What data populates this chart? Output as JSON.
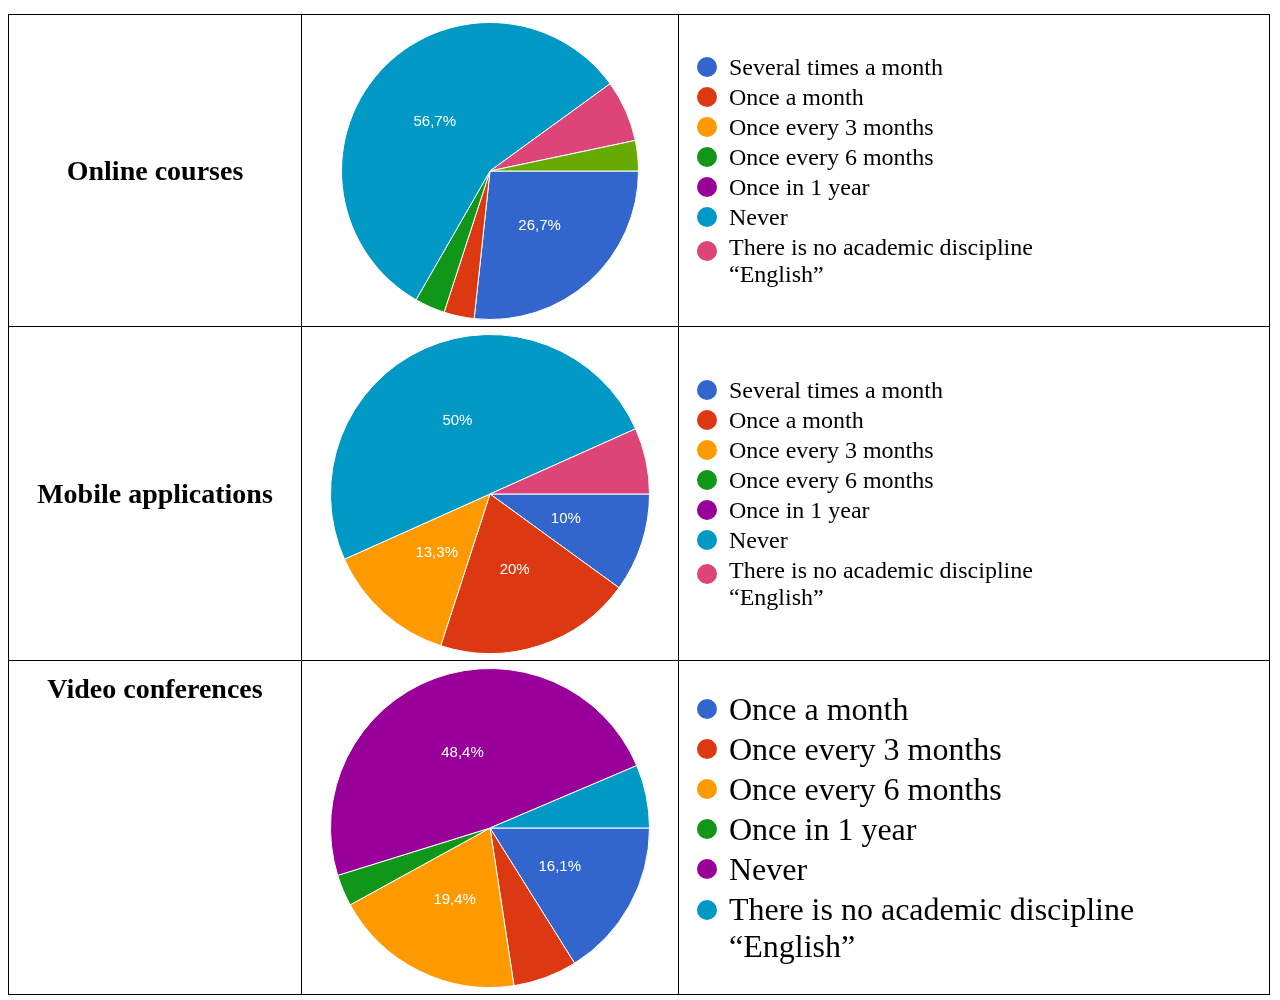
{
  "chart_data": [
    {
      "type": "pie",
      "title": "Online courses",
      "legend": "right",
      "categories": [
        "Several times a month",
        "Once a month",
        "Once every 3 months",
        "Once every 6 months",
        "Once in 1 year",
        "Never",
        "There is no academic discipline “English”",
        null
      ],
      "values": [
        26.7,
        3.3,
        0,
        3.3,
        0,
        56.7,
        6.7,
        3.3
      ],
      "colors": [
        "#3366cc",
        "#dc3912",
        "#ff9900",
        "#109618",
        "#990099",
        "#0099c6",
        "#dd4477",
        "#66aa00"
      ],
      "value_labels": [
        "26,7%",
        null,
        null,
        null,
        null,
        "56,7%",
        null,
        null
      ]
    },
    {
      "type": "pie",
      "title": "Mobile applications",
      "legend": "right",
      "categories": [
        "Several times a month",
        "Once a month",
        "Once every 3 months",
        "Once every 6 months",
        "Once in 1 year",
        "Never",
        "There is no academic discipline “English”"
      ],
      "values": [
        10,
        20,
        13.3,
        0,
        0,
        50,
        6.7
      ],
      "colors": [
        "#3366cc",
        "#dc3912",
        "#ff9900",
        "#109618",
        "#990099",
        "#0099c6",
        "#dd4477"
      ],
      "value_labels": [
        "10%",
        "20%",
        "13,3%",
        null,
        null,
        "50%",
        null
      ]
    },
    {
      "type": "pie",
      "title": "Video conferences",
      "legend": "right",
      "categories": [
        "Once a month",
        "Once every 3 months",
        "Once every 6 months",
        "Once in 1 year",
        "Never",
        "There is no academic discipline “English”"
      ],
      "values": [
        16.1,
        6.5,
        19.4,
        3.2,
        48.4,
        6.4
      ],
      "colors": [
        "#3366cc",
        "#dc3912",
        "#ff9900",
        "#109618",
        "#990099",
        "#0099c6"
      ],
      "value_labels": [
        "16,1%",
        null,
        "19,4%",
        null,
        "48,4%",
        null
      ]
    }
  ]
}
